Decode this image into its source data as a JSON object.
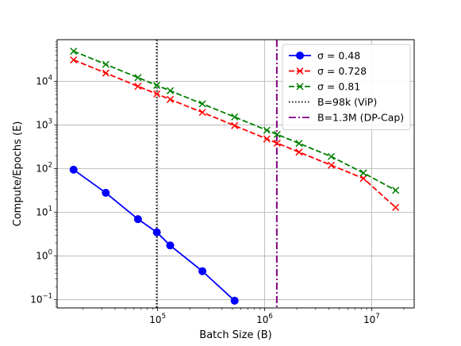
{
  "chart_data": {
    "type": "line",
    "xlabel": "Batch Size (B)",
    "ylabel": "Compute/Epochs (E)",
    "xscale": "log",
    "yscale": "log",
    "xlim": [
      11500,
      25000000
    ],
    "ylim": [
      0.065,
      90000
    ],
    "grid": true,
    "legend_position": "top-right",
    "x_tick_labels": [
      {
        "value": 100000,
        "base": "10",
        "exp": "5"
      },
      {
        "value": 1000000,
        "base": "10",
        "exp": "6"
      },
      {
        "value": 10000000,
        "base": "10",
        "exp": "7"
      }
    ],
    "y_tick_labels": [
      {
        "value": 0.1,
        "base": "10",
        "exp": "−1"
      },
      {
        "value": 1,
        "base": "10",
        "exp": "0"
      },
      {
        "value": 10,
        "base": "10",
        "exp": "1"
      },
      {
        "value": 100,
        "base": "10",
        "exp": "2"
      },
      {
        "value": 1000,
        "base": "10",
        "exp": "3"
      },
      {
        "value": 10000,
        "base": "10",
        "exp": "4"
      }
    ],
    "series": [
      {
        "name": "σ = 0.48",
        "color": "#0000ff",
        "marker": "circle",
        "linestyle": "solid",
        "points": [
          [
            16384,
            95
          ],
          [
            32768,
            28
          ],
          [
            65536,
            7
          ],
          [
            98304,
            3.5
          ],
          [
            131072,
            1.75
          ],
          [
            262144,
            0.45
          ],
          [
            524288,
            0.095
          ]
        ]
      },
      {
        "name": "σ = 0.728",
        "color": "#ff0000",
        "marker": "x",
        "linestyle": "dashed",
        "points": [
          [
            16384,
            31000
          ],
          [
            32768,
            15500
          ],
          [
            65536,
            7700
          ],
          [
            98304,
            5150
          ],
          [
            131072,
            3850
          ],
          [
            262144,
            1950
          ],
          [
            524288,
            970
          ],
          [
            1048576,
            480
          ],
          [
            1310720,
            385
          ],
          [
            2097152,
            240
          ],
          [
            4194304,
            120
          ],
          [
            8388608,
            60
          ],
          [
            16777216,
            13
          ]
        ]
      },
      {
        "name": "σ = 0.81",
        "color": "#008000",
        "marker": "x",
        "linestyle": "dashed",
        "points": [
          [
            16384,
            49000
          ],
          [
            32768,
            24500
          ],
          [
            65536,
            12200
          ],
          [
            98304,
            8100
          ],
          [
            131072,
            6100
          ],
          [
            262144,
            3050
          ],
          [
            524288,
            1530
          ],
          [
            1048576,
            760
          ],
          [
            1310720,
            610
          ],
          [
            2097152,
            380
          ],
          [
            4194304,
            190
          ],
          [
            8388608,
            80
          ],
          [
            16777216,
            32
          ]
        ]
      }
    ],
    "vlines": [
      {
        "name": "B=98k (ViP)",
        "x": 98000,
        "color": "#000000",
        "linestyle": "dotted"
      },
      {
        "name": "B=1.3M (DP-Cap)",
        "x": 1300000,
        "color": "#800080",
        "linestyle": "dashdot"
      }
    ],
    "legend": [
      {
        "label": "σ = 0.48",
        "color": "#0000ff",
        "kind": "line-circle"
      },
      {
        "label": "σ = 0.728",
        "color": "#ff0000",
        "kind": "dashed-x"
      },
      {
        "label": "σ = 0.81",
        "color": "#008000",
        "kind": "dashed-x"
      },
      {
        "label": "B=98k (ViP)",
        "color": "#000000",
        "kind": "dotted"
      },
      {
        "label": "B=1.3M (DP-Cap)",
        "color": "#800080",
        "kind": "dashdot"
      }
    ]
  }
}
